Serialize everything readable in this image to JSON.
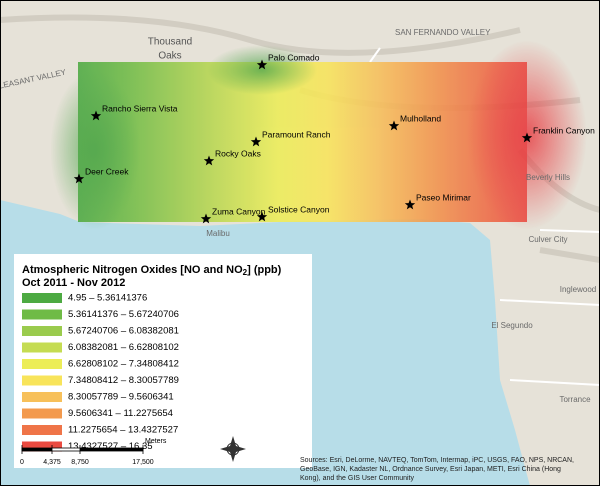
{
  "map": {
    "place_labels": [
      "Thousand",
      "Oaks",
      "SAN FERNANDO VALLEY",
      "PLEASANT VALLEY",
      "Malibu",
      "Culver City",
      "Inglewood",
      "El Segundo",
      "Torrance",
      "Beverly Hills"
    ]
  },
  "stations": [
    "Palo Comado",
    "Rancho Sierra Vista",
    "Paramount Ranch",
    "Mulholland",
    "Franklin Canyon",
    "Deer Creek",
    "Rocky Oaks",
    "Zuma Canyon",
    "Solstice Canyon",
    "Paseo Mirimar"
  ],
  "legend": {
    "title": [
      "Atmospheric Nitrogen Oxides [NO and NO",
      "2",
      "] (ppb)"
    ],
    "period": "Oct 2011 - Nov 2012",
    "entries": [
      {
        "label": "4.95 – 5.36141376",
        "color": "#4daa42"
      },
      {
        "label": "5.36141376 – 5.67240706",
        "color": "#6fbb46"
      },
      {
        "label": "5.67240706 – 6.08382081",
        "color": "#9acb4d"
      },
      {
        "label": "6.08382081 – 6.62808102",
        "color": "#c5dc52"
      },
      {
        "label": "6.62808102 – 7.34808412",
        "color": "#eced57"
      },
      {
        "label": "7.34808412 – 8.30057789",
        "color": "#f8e45a"
      },
      {
        "label": "8.30057789 – 9.5606341",
        "color": "#f7c05a"
      },
      {
        "label": "9.5606341 – 11.2275654",
        "color": "#f39a4e"
      },
      {
        "label": "11.2275654 – 13.4327527",
        "color": "#ef7448"
      },
      {
        "label": "13.4327527 – 16.35",
        "color": "#ea4a40"
      }
    ]
  },
  "scale_bar": {
    "ticks": [
      "0",
      "4,375",
      "8,750",
      "17,500"
    ],
    "unit": "Meters"
  },
  "attribution": [
    "Sources: Esri, DeLorme, NAVTEQ, TomTom, Intermap, iPC, USGS, FAO, NPS, NRCAN,",
    "GeoBase, IGN, Kadaster NL, Ordnance Survey, Esri Japan, METI, Esri China (Hong",
    "Kong), and the GIS User Community"
  ]
}
